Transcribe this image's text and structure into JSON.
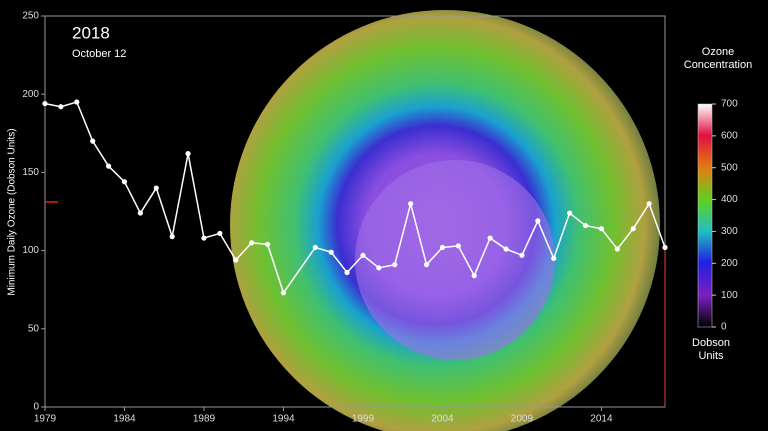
{
  "chart_data": {
    "type": "line",
    "title": "2018",
    "subtitle": "October 12",
    "y_label": "Minimum Daily Ozone (Dobson Units)",
    "x": [
      1979,
      1980,
      1981,
      1982,
      1983,
      1984,
      1985,
      1986,
      1987,
      1988,
      1989,
      1990,
      1991,
      1992,
      1993,
      1994,
      1996,
      1997,
      1998,
      1999,
      2000,
      2001,
      2002,
      2003,
      2004,
      2005,
      2006,
      2007,
      2008,
      2009,
      2010,
      2011,
      2012,
      2013,
      2014,
      2015,
      2016,
      2017,
      2018
    ],
    "series": [
      {
        "name": "Minimum Daily Ozone",
        "color": "#ffffff",
        "values": [
          194,
          192,
          195,
          170,
          154,
          144,
          124,
          140,
          109,
          162,
          108,
          111,
          94,
          105,
          104,
          73,
          102,
          99,
          86,
          97,
          89,
          91,
          130,
          91,
          102,
          103,
          84,
          108,
          101,
          97,
          119,
          95,
          124,
          116,
          114,
          101,
          114,
          130,
          102
        ]
      }
    ],
    "xlim": [
      1979,
      2018
    ],
    "xticks": [
      1979,
      1984,
      1989,
      1994,
      1999,
      2004,
      2009,
      2014
    ],
    "ylim": [
      0,
      250
    ],
    "yticks": [
      0,
      50,
      100,
      150,
      200,
      250
    ],
    "colorbar": {
      "title": "Ozone Concentration",
      "unit": "Dobson Units",
      "lim": [
        0,
        700
      ],
      "ticks": [
        0,
        100,
        200,
        300,
        400,
        500,
        600,
        700
      ]
    }
  }
}
